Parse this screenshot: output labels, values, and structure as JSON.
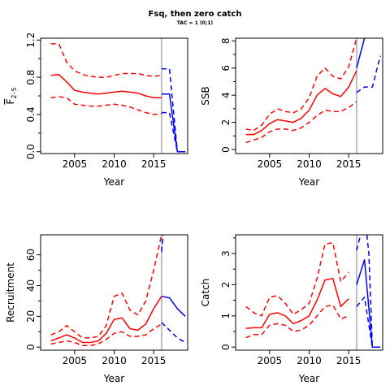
{
  "title": "Fsq, then zero catch",
  "subtitle": "TAC = 1 (0;1)",
  "colors": {
    "historical": "#ff0000",
    "projection": "#0000ff",
    "divider": "#bebebe"
  },
  "chart_data": [
    {
      "type": "line",
      "xlabel": "Year",
      "ylabel": "F",
      "ylabel_sub": "2–5",
      "xlim": [
        2000.7,
        2019.3
      ],
      "ylim": [
        -0.02,
        1.22
      ],
      "xticks": [
        2005,
        2010,
        2015
      ],
      "yticks": [
        0.0,
        0.4,
        0.8,
        1.2
      ],
      "yticks_minor": [
        0.2,
        0.6,
        1.0
      ],
      "divider_x": 2016,
      "series": [
        {
          "role": "median",
          "color": "historical",
          "dash": false,
          "x": [
            2002,
            2003,
            2004,
            2005,
            2006,
            2007,
            2008,
            2009,
            2010,
            2011,
            2012,
            2013,
            2014,
            2015,
            2016
          ],
          "y": [
            0.82,
            0.83,
            0.75,
            0.66,
            0.64,
            0.63,
            0.62,
            0.63,
            0.64,
            0.65,
            0.64,
            0.63,
            0.6,
            0.58,
            0.58
          ]
        },
        {
          "role": "upper",
          "color": "historical",
          "dash": true,
          "x": [
            2002,
            2003,
            2004,
            2005,
            2006,
            2007,
            2008,
            2009,
            2010,
            2011,
            2012,
            2013,
            2014,
            2015,
            2016
          ],
          "y": [
            1.16,
            1.16,
            0.96,
            0.87,
            0.83,
            0.81,
            0.8,
            0.8,
            0.82,
            0.84,
            0.84,
            0.84,
            0.82,
            0.81,
            0.82
          ]
        },
        {
          "role": "lower",
          "color": "historical",
          "dash": true,
          "x": [
            2002,
            2003,
            2004,
            2005,
            2006,
            2007,
            2008,
            2009,
            2010,
            2011,
            2012,
            2013,
            2014,
            2015,
            2016
          ],
          "y": [
            0.58,
            0.59,
            0.58,
            0.51,
            0.5,
            0.49,
            0.49,
            0.5,
            0.51,
            0.5,
            0.48,
            0.45,
            0.42,
            0.4,
            0.41
          ]
        },
        {
          "role": "median",
          "color": "projection",
          "dash": false,
          "x": [
            2016,
            2017,
            2018,
            2019
          ],
          "y": [
            0.62,
            0.62,
            0.0,
            0.0
          ]
        },
        {
          "role": "upper",
          "color": "projection",
          "dash": true,
          "x": [
            2016,
            2017,
            2018,
            2019
          ],
          "y": [
            0.89,
            0.89,
            0.0,
            0.0
          ]
        },
        {
          "role": "lower",
          "color": "projection",
          "dash": true,
          "x": [
            2016,
            2017,
            2018,
            2019
          ],
          "y": [
            0.42,
            0.42,
            0.0,
            0.0
          ]
        }
      ]
    },
    {
      "type": "line",
      "xlabel": "Year",
      "ylabel": "SSB",
      "xlim": [
        2000.7,
        2019.3
      ],
      "ylim": [
        -0.3,
        8.2
      ],
      "xticks": [
        2005,
        2010,
        2015
      ],
      "yticks": [
        0,
        2,
        4,
        6,
        8
      ],
      "yticks_minor": [
        1,
        3,
        5,
        7
      ],
      "divider_x": 2016,
      "series": [
        {
          "role": "median",
          "color": "historical",
          "dash": false,
          "x": [
            2002,
            2003,
            2004,
            2005,
            2006,
            2007,
            2008,
            2009,
            2010,
            2011,
            2012,
            2013,
            2014,
            2015,
            2016
          ],
          "y": [
            1.1,
            1.1,
            1.4,
            1.9,
            2.2,
            2.1,
            2.0,
            2.3,
            2.9,
            4.0,
            4.5,
            4.1,
            3.9,
            4.6,
            5.8
          ]
        },
        {
          "role": "upper",
          "color": "historical",
          "dash": true,
          "x": [
            2002,
            2003,
            2004,
            2005,
            2006,
            2007,
            2008,
            2009,
            2010,
            2011,
            2012,
            2013,
            2014,
            2015,
            2016
          ],
          "y": [
            1.5,
            1.4,
            1.8,
            2.6,
            3.0,
            2.8,
            2.7,
            3.0,
            3.8,
            5.4,
            6.0,
            5.4,
            5.2,
            6.1,
            8.2
          ]
        },
        {
          "role": "lower",
          "color": "historical",
          "dash": true,
          "x": [
            2002,
            2003,
            2004,
            2005,
            2006,
            2007,
            2008,
            2009,
            2010,
            2011,
            2012,
            2013,
            2014,
            2015,
            2016
          ],
          "y": [
            0.5,
            0.7,
            0.9,
            1.3,
            1.5,
            1.5,
            1.4,
            1.6,
            2.0,
            2.5,
            2.9,
            2.8,
            2.8,
            3.1,
            3.5
          ]
        },
        {
          "role": "median",
          "color": "projection",
          "dash": false,
          "x": [
            2016,
            2017
          ],
          "y": [
            6.0,
            8.2
          ]
        },
        {
          "role": "lower",
          "color": "projection",
          "dash": true,
          "x": [
            2016,
            2017,
            2018,
            2019
          ],
          "y": [
            4.2,
            4.6,
            4.6,
            6.9
          ]
        }
      ]
    },
    {
      "type": "line",
      "xlabel": "Year",
      "ylabel": "Recruitment",
      "xlim": [
        2000.7,
        2019.3
      ],
      "ylim": [
        -2,
        73
      ],
      "xticks": [
        2005,
        2010,
        2015
      ],
      "yticks": [
        0,
        20,
        40,
        60
      ],
      "yticks_minor": [
        10,
        30,
        50
      ],
      "divider_x": 2016,
      "series": [
        {
          "role": "median",
          "color": "historical",
          "dash": false,
          "x": [
            2002,
            2003,
            2004,
            2005,
            2006,
            2007,
            2008,
            2009,
            2010,
            2011,
            2012,
            2013,
            2014,
            2015,
            2016
          ],
          "y": [
            4,
            6,
            8,
            6,
            3,
            3,
            4,
            9,
            18,
            19,
            12,
            11,
            15,
            25,
            33
          ]
        },
        {
          "role": "upper",
          "color": "historical",
          "dash": true,
          "x": [
            2002,
            2003,
            2004,
            2005,
            2006,
            2007,
            2008,
            2009,
            2010,
            2011,
            2012,
            2013,
            2014,
            2015,
            2016
          ],
          "y": [
            8,
            10,
            14,
            10,
            6,
            6,
            7,
            14,
            33,
            35,
            24,
            21,
            30,
            50,
            73
          ]
        },
        {
          "role": "lower",
          "color": "historical",
          "dash": true,
          "x": [
            2002,
            2003,
            2004,
            2005,
            2006,
            2007,
            2008,
            2009,
            2010,
            2011,
            2012,
            2013,
            2014,
            2015,
            2016
          ],
          "y": [
            2,
            3,
            4,
            3,
            1,
            1,
            2,
            5,
            9,
            10,
            7,
            7,
            8,
            12,
            15
          ]
        },
        {
          "role": "median",
          "color": "projection",
          "dash": false,
          "x": [
            2016,
            2017,
            2018,
            2019
          ],
          "y": [
            33,
            32,
            25,
            20
          ]
        },
        {
          "role": "upper",
          "color": "projection",
          "dash": true,
          "x": [
            2016,
            2016.2
          ],
          "y": [
            62,
            73
          ]
        },
        {
          "role": "lower",
          "color": "projection",
          "dash": true,
          "x": [
            2016,
            2017,
            2018,
            2019
          ],
          "y": [
            16,
            11,
            6,
            3
          ]
        }
      ]
    },
    {
      "type": "line",
      "xlabel": "Year",
      "ylabel": "Catch",
      "xlim": [
        2000.7,
        2019.3
      ],
      "ylim": [
        -0.1,
        3.6
      ],
      "xticks": [
        2005,
        2010,
        2015
      ],
      "yticks": [
        0.0,
        1.0,
        2.0,
        3.0
      ],
      "yticks_minor": [
        0.5,
        1.5,
        2.5,
        3.5
      ],
      "divider_x": 2016,
      "series": [
        {
          "role": "median",
          "color": "historical",
          "dash": false,
          "x": [
            2002,
            2003,
            2004,
            2005,
            2006,
            2007,
            2008,
            2009,
            2010,
            2011,
            2012,
            2013,
            2014,
            2015
          ],
          "y": [
            0.6,
            0.62,
            0.62,
            1.05,
            1.1,
            1.0,
            0.75,
            0.85,
            1.0,
            1.5,
            2.15,
            2.2,
            1.3,
            1.55
          ]
        },
        {
          "role": "upper",
          "color": "historical",
          "dash": true,
          "x": [
            2002,
            2003,
            2004,
            2005,
            2006,
            2007,
            2008,
            2009,
            2010,
            2011,
            2012,
            2013,
            2014,
            2015
          ],
          "y": [
            1.3,
            1.1,
            1.0,
            1.6,
            1.65,
            1.4,
            1.05,
            1.2,
            1.4,
            2.2,
            3.3,
            3.35,
            2.1,
            2.4
          ]
        },
        {
          "role": "lower",
          "color": "historical",
          "dash": true,
          "x": [
            2002,
            2003,
            2004,
            2005,
            2006,
            2007,
            2008,
            2009,
            2010,
            2011,
            2012,
            2013,
            2014,
            2015
          ],
          "y": [
            0.3,
            0.4,
            0.4,
            0.7,
            0.75,
            0.7,
            0.5,
            0.55,
            0.7,
            1.0,
            1.3,
            1.35,
            0.9,
            1.0
          ]
        },
        {
          "role": "median",
          "color": "projection",
          "dash": false,
          "x": [
            2016,
            2017,
            2018,
            2019
          ],
          "y": [
            2.0,
            2.8,
            0.0,
            0.0
          ]
        },
        {
          "role": "upper",
          "color": "projection",
          "dash": true,
          "x": [
            2016,
            2016.5
          ],
          "y": [
            3.1,
            3.6
          ]
        },
        {
          "role": "upper",
          "color": "projection",
          "dash": true,
          "x": [
            2017.3,
            2017.55,
            2018,
            2019
          ],
          "y": [
            3.6,
            3.0,
            0.0,
            0.0
          ]
        },
        {
          "role": "lower",
          "color": "projection",
          "dash": true,
          "x": [
            2016,
            2017,
            2018,
            2019
          ],
          "y": [
            1.3,
            1.6,
            0.0,
            0.0
          ]
        }
      ]
    }
  ]
}
